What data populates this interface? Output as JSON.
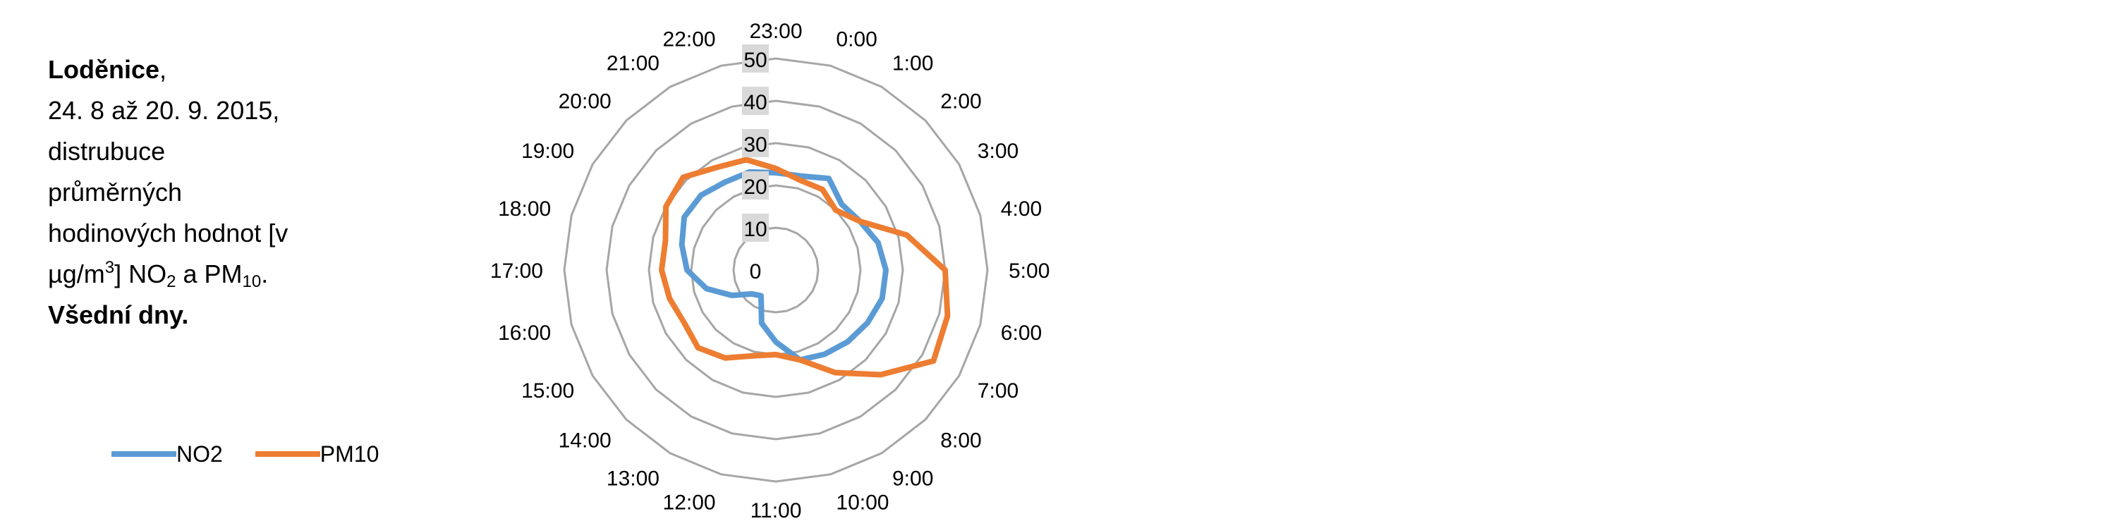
{
  "caption": {
    "place": "Loděnice",
    "period": "24. 8 až 20. 9. 2015,",
    "line3": "distrubuce",
    "line4": "průměrných",
    "line5": "hodinových hodnot [v",
    "unit_pre": "µg/m",
    "unit_sup": "3",
    "unit_mid": "] NO",
    "no2_sub": "2",
    "and_pm": " a PM",
    "pm_sub": "10",
    "period_end": ".",
    "daytype": "Všední dny."
  },
  "chart_data": {
    "type": "radar",
    "categories": [
      "0:00",
      "1:00",
      "2:00",
      "3:00",
      "4:00",
      "5:00",
      "6:00",
      "7:00",
      "8:00",
      "9:00",
      "10:00",
      "11:00",
      "12:00",
      "13:00",
      "14:00",
      "15:00",
      "16:00",
      "17:00",
      "18:00",
      "19:00",
      "20:00",
      "21:00",
      "22:00",
      "23:00"
    ],
    "rlim": [
      0,
      50
    ],
    "rticks": [
      "0",
      "10",
      "20",
      "30",
      "40",
      "50"
    ],
    "grid": true,
    "legend_position": "bottom-left",
    "series": [
      {
        "name": "NO2",
        "color": "#5b9bd5",
        "values": [
          23,
          25,
          22,
          23,
          25,
          26,
          26,
          25,
          24,
          23,
          22,
          17,
          13,
          7,
          8,
          12,
          17,
          21,
          23,
          25,
          25,
          24,
          24,
          23
        ]
      },
      {
        "name": "PM10",
        "color": "#ed7d31",
        "values": [
          22,
          22,
          20,
          23,
          32,
          40,
          42,
          43,
          35,
          28,
          22,
          20,
          21,
          24,
          26,
          25,
          26,
          27,
          27,
          30,
          31,
          28,
          27,
          24
        ]
      }
    ]
  }
}
